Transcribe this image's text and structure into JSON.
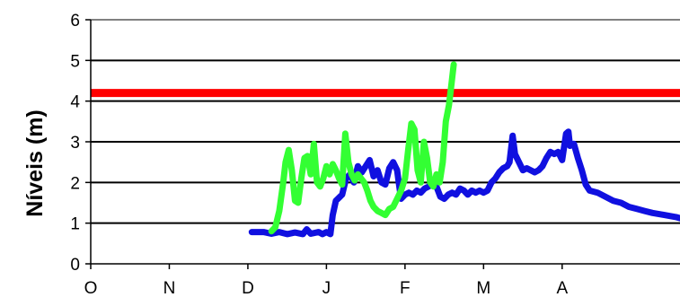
{
  "chart_data": {
    "type": "line",
    "title": "",
    "xlabel": "",
    "ylabel": "Níveis (m)",
    "xlim": [
      0,
      7.5
    ],
    "ylim": [
      0,
      6
    ],
    "x_ticks": [
      {
        "label": "O",
        "value": 0
      },
      {
        "label": "N",
        "value": 1
      },
      {
        "label": "D",
        "value": 2
      },
      {
        "label": "J",
        "value": 3
      },
      {
        "label": "F",
        "value": 4
      },
      {
        "label": "M",
        "value": 5
      },
      {
        "label": "A",
        "value": 6
      }
    ],
    "y_ticks": [
      0,
      1,
      2,
      3,
      4,
      5,
      6
    ],
    "grid": {
      "horizontal": true,
      "vertical": false
    },
    "colors": {
      "axis": "#000000",
      "gridline": "#000000",
      "top_gridline": "#808080",
      "reference": "#ff0000",
      "series_blue": "#1010e0",
      "series_green": "#33ff33"
    },
    "reference_line": {
      "value": 4.2
    },
    "series": [
      {
        "color_key": "series_blue",
        "points": [
          [
            2.05,
            0.78
          ],
          [
            2.2,
            0.78
          ],
          [
            2.3,
            0.74
          ],
          [
            2.4,
            0.78
          ],
          [
            2.5,
            0.73
          ],
          [
            2.6,
            0.77
          ],
          [
            2.7,
            0.73
          ],
          [
            2.75,
            0.85
          ],
          [
            2.8,
            0.74
          ],
          [
            2.9,
            0.78
          ],
          [
            2.95,
            0.73
          ],
          [
            3.0,
            0.78
          ],
          [
            3.05,
            0.73
          ],
          [
            3.08,
            1.2
          ],
          [
            3.12,
            1.55
          ],
          [
            3.2,
            1.7
          ],
          [
            3.25,
            2.1
          ],
          [
            3.3,
            2.2
          ],
          [
            3.35,
            2.0
          ],
          [
            3.4,
            2.4
          ],
          [
            3.45,
            2.25
          ],
          [
            3.5,
            2.4
          ],
          [
            3.55,
            2.55
          ],
          [
            3.6,
            2.15
          ],
          [
            3.65,
            2.3
          ],
          [
            3.7,
            2.0
          ],
          [
            3.75,
            1.95
          ],
          [
            3.8,
            2.35
          ],
          [
            3.85,
            2.5
          ],
          [
            3.9,
            2.3
          ],
          [
            3.92,
            2.0
          ],
          [
            3.95,
            1.6
          ],
          [
            4.0,
            1.7
          ],
          [
            4.05,
            1.75
          ],
          [
            4.1,
            1.7
          ],
          [
            4.15,
            1.8
          ],
          [
            4.2,
            1.75
          ],
          [
            4.25,
            1.85
          ],
          [
            4.3,
            1.9
          ],
          [
            4.35,
            2.0
          ],
          [
            4.4,
            1.9
          ],
          [
            4.45,
            1.65
          ],
          [
            4.5,
            1.6
          ],
          [
            4.55,
            1.7
          ],
          [
            4.6,
            1.75
          ],
          [
            4.65,
            1.7
          ],
          [
            4.7,
            1.85
          ],
          [
            4.75,
            1.8
          ],
          [
            4.8,
            1.7
          ],
          [
            4.85,
            1.8
          ],
          [
            4.9,
            1.75
          ],
          [
            4.95,
            1.8
          ],
          [
            5.0,
            1.75
          ],
          [
            5.05,
            1.8
          ],
          [
            5.1,
            2.0
          ],
          [
            5.15,
            2.1
          ],
          [
            5.2,
            2.25
          ],
          [
            5.25,
            2.35
          ],
          [
            5.3,
            2.4
          ],
          [
            5.33,
            2.5
          ],
          [
            5.37,
            3.15
          ],
          [
            5.4,
            2.7
          ],
          [
            5.45,
            2.5
          ],
          [
            5.5,
            2.3
          ],
          [
            5.55,
            2.35
          ],
          [
            5.6,
            2.3
          ],
          [
            5.65,
            2.25
          ],
          [
            5.7,
            2.3
          ],
          [
            5.75,
            2.4
          ],
          [
            5.8,
            2.6
          ],
          [
            5.85,
            2.75
          ],
          [
            5.9,
            2.7
          ],
          [
            5.95,
            2.75
          ],
          [
            6.0,
            2.55
          ],
          [
            6.05,
            3.2
          ],
          [
            6.08,
            3.25
          ],
          [
            6.1,
            2.9
          ],
          [
            6.15,
            2.95
          ],
          [
            6.2,
            2.6
          ],
          [
            6.25,
            2.3
          ],
          [
            6.3,
            1.95
          ],
          [
            6.35,
            1.8
          ],
          [
            6.45,
            1.75
          ],
          [
            6.55,
            1.65
          ],
          [
            6.65,
            1.55
          ],
          [
            6.75,
            1.5
          ],
          [
            6.85,
            1.4
          ],
          [
            6.95,
            1.35
          ],
          [
            7.05,
            1.3
          ],
          [
            7.15,
            1.25
          ],
          [
            7.3,
            1.2
          ],
          [
            7.45,
            1.15
          ],
          [
            7.5,
            1.12
          ]
        ]
      },
      {
        "color_key": "series_green",
        "points": [
          [
            2.3,
            0.8
          ],
          [
            2.35,
            0.9
          ],
          [
            2.4,
            1.3
          ],
          [
            2.45,
            2.0
          ],
          [
            2.48,
            2.5
          ],
          [
            2.52,
            2.8
          ],
          [
            2.56,
            2.3
          ],
          [
            2.6,
            1.55
          ],
          [
            2.64,
            1.5
          ],
          [
            2.68,
            2.1
          ],
          [
            2.72,
            2.6
          ],
          [
            2.76,
            2.65
          ],
          [
            2.8,
            2.2
          ],
          [
            2.84,
            2.95
          ],
          [
            2.88,
            2.0
          ],
          [
            2.92,
            1.9
          ],
          [
            2.96,
            2.1
          ],
          [
            3.0,
            2.4
          ],
          [
            3.04,
            2.2
          ],
          [
            3.08,
            2.45
          ],
          [
            3.12,
            2.3
          ],
          [
            3.16,
            2.1
          ],
          [
            3.2,
            1.95
          ],
          [
            3.24,
            3.2
          ],
          [
            3.28,
            2.5
          ],
          [
            3.32,
            2.2
          ],
          [
            3.36,
            2.05
          ],
          [
            3.4,
            2.2
          ],
          [
            3.44,
            2.1
          ],
          [
            3.48,
            2.0
          ],
          [
            3.52,
            1.8
          ],
          [
            3.56,
            1.55
          ],
          [
            3.6,
            1.4
          ],
          [
            3.65,
            1.3
          ],
          [
            3.7,
            1.25
          ],
          [
            3.75,
            1.2
          ],
          [
            3.8,
            1.35
          ],
          [
            3.85,
            1.4
          ],
          [
            3.9,
            1.6
          ],
          [
            3.95,
            1.8
          ],
          [
            4.0,
            2.1
          ],
          [
            4.04,
            2.8
          ],
          [
            4.08,
            3.45
          ],
          [
            4.12,
            3.3
          ],
          [
            4.16,
            2.3
          ],
          [
            4.2,
            2.0
          ],
          [
            4.24,
            3.0
          ],
          [
            4.28,
            2.6
          ],
          [
            4.32,
            2.0
          ],
          [
            4.36,
            1.9
          ],
          [
            4.4,
            2.2
          ],
          [
            4.44,
            2.0
          ],
          [
            4.48,
            2.5
          ],
          [
            4.52,
            3.5
          ],
          [
            4.56,
            3.9
          ],
          [
            4.59,
            4.4
          ],
          [
            4.62,
            4.9
          ]
        ]
      }
    ]
  }
}
